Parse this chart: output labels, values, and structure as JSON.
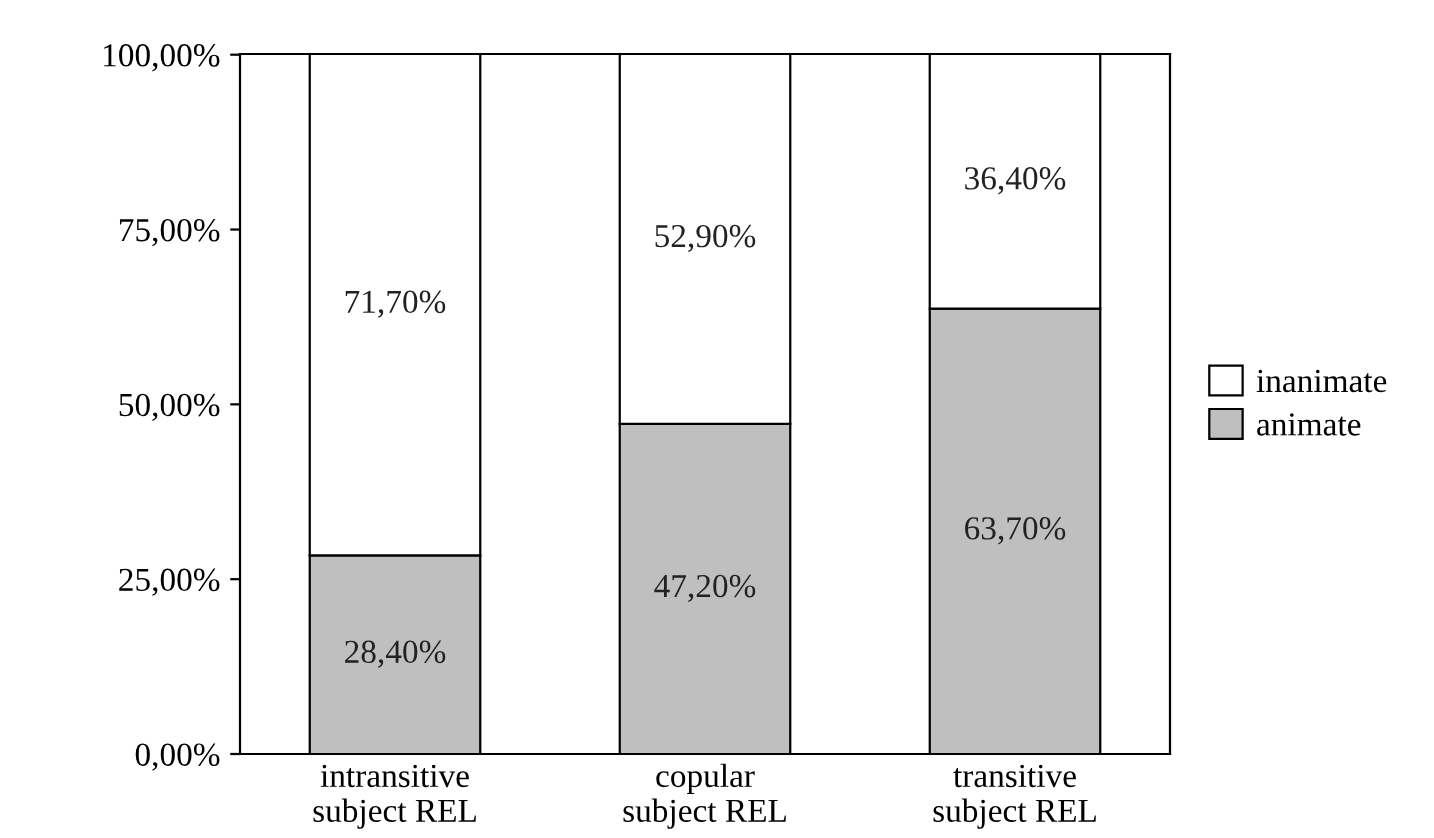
{
  "chart_data": {
    "type": "bar",
    "stacked": true,
    "categories": [
      "intransitive\nsubject REL",
      "copular\nsubject REL",
      "transitive\nsubject REL"
    ],
    "series": [
      {
        "name": "animate",
        "color": "#bfbfbf",
        "values": [
          28.4,
          47.2,
          63.7
        ],
        "value_labels": [
          "28,40%",
          "47,20%",
          "63,70%"
        ]
      },
      {
        "name": "inanimate",
        "color": "#ffffff",
        "values": [
          71.7,
          52.9,
          36.4
        ],
        "value_labels": [
          "71,70%",
          "52,90%",
          "36,40%"
        ]
      }
    ],
    "ylim": [
      0,
      100.1
    ],
    "yticks": [
      {
        "value": 0,
        "label": "0,00%"
      },
      {
        "value": 25,
        "label": "25,00%"
      },
      {
        "value": 50,
        "label": "50,00%"
      },
      {
        "value": 75,
        "label": "75,00%"
      },
      {
        "value": 100,
        "label": "100,00%"
      }
    ],
    "grid": false,
    "legend": "right"
  }
}
